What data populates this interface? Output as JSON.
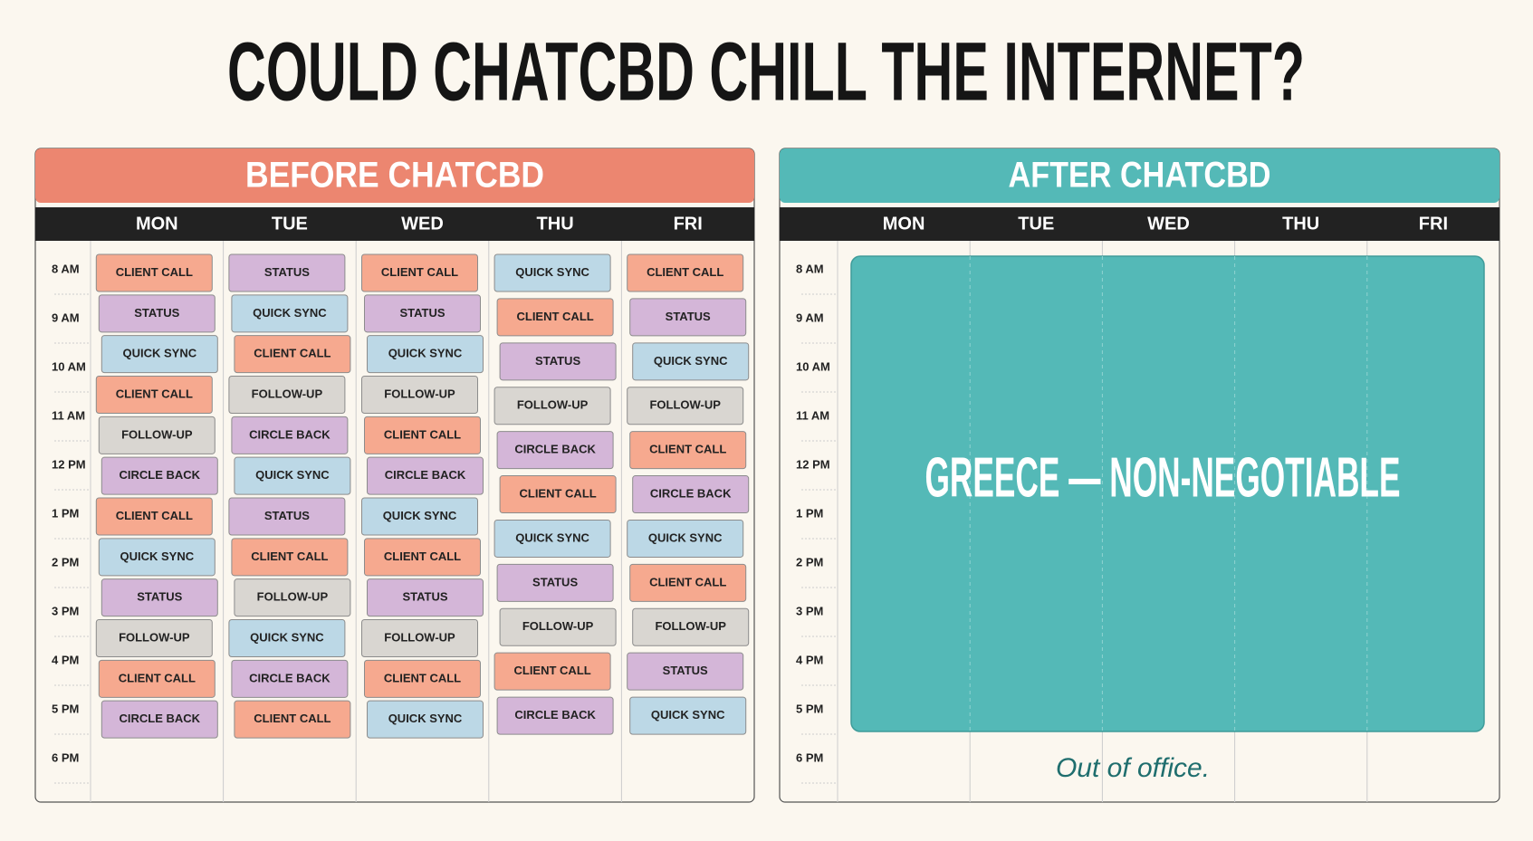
{
  "header": {
    "title": "COULD CHATCBD CHILL THE INTERNET?"
  },
  "before": {
    "title": "BEFORE CHATCBD",
    "color": "#ec8670",
    "days": [
      "MON",
      "TUE",
      "WED",
      "THU",
      "FRI"
    ],
    "times": [
      "8 AM",
      "9 AM",
      "10 AM",
      "11 AM",
      "12 PM",
      "1 PM",
      "2 PM",
      "3 PM",
      "4 PM",
      "5 PM",
      "6 PM"
    ],
    "columns": [
      [
        {
          "label": "CLIENT CALL",
          "color": "#f6a98f"
        },
        {
          "label": "STATUS",
          "color": "#d4b6d8"
        },
        {
          "label": "QUICK SYNC",
          "color": "#bcd8e6"
        },
        {
          "label": "CLIENT CALL",
          "color": "#f6a98f"
        },
        {
          "label": "FOLLOW-UP",
          "color": "#d9d6d1"
        },
        {
          "label": "CIRCLE BACK",
          "color": "#d4b6d8"
        },
        {
          "label": "CLIENT CALL",
          "color": "#f6a98f"
        },
        {
          "label": "QUICK SYNC",
          "color": "#bcd8e6"
        },
        {
          "label": "STATUS",
          "color": "#d4b6d8"
        },
        {
          "label": "FOLLOW-UP",
          "color": "#d9d6d1"
        },
        {
          "label": "CLIENT CALL",
          "color": "#f6a98f"
        },
        {
          "label": "CIRCLE BACK",
          "color": "#d4b6d8"
        }
      ],
      [
        {
          "label": "STATUS",
          "color": "#d4b6d8"
        },
        {
          "label": "QUICK SYNC",
          "color": "#bcd8e6"
        },
        {
          "label": "CLIENT CALL",
          "color": "#f6a98f"
        },
        {
          "label": "FOLLOW-UP",
          "color": "#d9d6d1"
        },
        {
          "label": "CIRCLE BACK",
          "color": "#d4b6d8"
        },
        {
          "label": "QUICK SYNC",
          "color": "#bcd8e6"
        },
        {
          "label": "STATUS",
          "color": "#d4b6d8"
        },
        {
          "label": "CLIENT CALL",
          "color": "#f6a98f"
        },
        {
          "label": "FOLLOW-UP",
          "color": "#d9d6d1"
        },
        {
          "label": "QUICK SYNC",
          "color": "#bcd8e6"
        },
        {
          "label": "CIRCLE BACK",
          "color": "#d4b6d8"
        },
        {
          "label": "CLIENT CALL",
          "color": "#f6a98f"
        }
      ],
      [
        {
          "label": "CLIENT CALL",
          "color": "#f6a98f"
        },
        {
          "label": "STATUS",
          "color": "#d4b6d8"
        },
        {
          "label": "QUICK SYNC",
          "color": "#bcd8e6"
        },
        {
          "label": "FOLLOW-UP",
          "color": "#d9d6d1"
        },
        {
          "label": "CLIENT CALL",
          "color": "#f6a98f"
        },
        {
          "label": "CIRCLE BACK",
          "color": "#d4b6d8"
        },
        {
          "label": "QUICK SYNC",
          "color": "#bcd8e6"
        },
        {
          "label": "CLIENT CALL",
          "color": "#f6a98f"
        },
        {
          "label": "STATUS",
          "color": "#d4b6d8"
        },
        {
          "label": "FOLLOW-UP",
          "color": "#d9d6d1"
        },
        {
          "label": "CLIENT CALL",
          "color": "#f6a98f"
        },
        {
          "label": "QUICK SYNC",
          "color": "#bcd8e6"
        }
      ],
      [
        {
          "label": "QUICK SYNC",
          "color": "#bcd8e6"
        },
        {
          "label": "CLIENT CALL",
          "color": "#f6a98f"
        },
        {
          "label": "STATUS",
          "color": "#d4b6d8"
        },
        {
          "label": "FOLLOW-UP",
          "color": "#d9d6d1"
        },
        {
          "label": "CIRCLE BACK",
          "color": "#d4b6d8"
        },
        {
          "label": "CLIENT CALL",
          "color": "#f6a98f"
        },
        {
          "label": "QUICK SYNC",
          "color": "#bcd8e6"
        },
        {
          "label": "STATUS",
          "color": "#d4b6d8"
        },
        {
          "label": "FOLLOW-UP",
          "color": "#d9d6d1"
        },
        {
          "label": "CLIENT CALL",
          "color": "#f6a98f"
        },
        {
          "label": "CIRCLE BACK",
          "color": "#d4b6d8"
        }
      ],
      [
        {
          "label": "CLIENT CALL",
          "color": "#f6a98f"
        },
        {
          "label": "STATUS",
          "color": "#d4b6d8"
        },
        {
          "label": "QUICK SYNC",
          "color": "#bcd8e6"
        },
        {
          "label": "FOLLOW-UP",
          "color": "#d9d6d1"
        },
        {
          "label": "CLIENT CALL",
          "color": "#f6a98f"
        },
        {
          "label": "CIRCLE BACK",
          "color": "#d4b6d8"
        },
        {
          "label": "QUICK SYNC",
          "color": "#bcd8e6"
        },
        {
          "label": "CLIENT CALL",
          "color": "#f6a98f"
        },
        {
          "label": "FOLLOW-UP",
          "color": "#d9d6d1"
        },
        {
          "label": "STATUS",
          "color": "#d4b6d8"
        },
        {
          "label": "QUICK SYNC",
          "color": "#bcd8e6"
        }
      ]
    ]
  },
  "after": {
    "title": "AFTER CHATCBD",
    "color": "#54b9b7",
    "days": [
      "MON",
      "TUE",
      "WED",
      "THU",
      "FRI"
    ],
    "times": [
      "8 AM",
      "9 AM",
      "10 AM",
      "11 AM",
      "12 PM",
      "1 PM",
      "2 PM",
      "3 PM",
      "4 PM",
      "5 PM",
      "6 PM"
    ],
    "block": "GREECE — NON-NEGOTIABLE",
    "note": "Out of office."
  }
}
